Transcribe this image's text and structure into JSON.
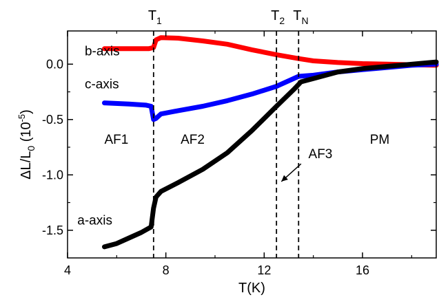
{
  "chart_data": {
    "type": "line",
    "xlabel": "T(K)",
    "ylabel_parts": {
      "prefix": "ΔL/L",
      "sub": "0",
      "mid": " (10",
      "sup": "-5",
      "end": ")"
    },
    "xlim": [
      4,
      19
    ],
    "ylim": [
      -1.75,
      0.3
    ],
    "x_ticks": [
      4,
      8,
      12,
      16
    ],
    "x_tick_labels": [
      "4",
      "8",
      "12",
      "16"
    ],
    "y_ticks": [
      0.0,
      -0.5,
      -1.0,
      -1.5
    ],
    "y_tick_labels": [
      "0.0",
      "-0.5",
      "-1.0",
      "-1.5"
    ],
    "series": [
      {
        "name": "b-axis",
        "color": "#ff0000",
        "points": [
          [
            5.5,
            0.14
          ],
          [
            6.5,
            0.14
          ],
          [
            7.3,
            0.14
          ],
          [
            7.5,
            0.15
          ],
          [
            7.6,
            0.22
          ],
          [
            7.8,
            0.24
          ],
          [
            8.5,
            0.235
          ],
          [
            9.5,
            0.21
          ],
          [
            10.5,
            0.18
          ],
          [
            11.5,
            0.13
          ],
          [
            12.5,
            0.085
          ],
          [
            13.4,
            0.05
          ],
          [
            14,
            0.03
          ],
          [
            15,
            0.015
          ],
          [
            16,
            0.005
          ],
          [
            17,
            0.0
          ],
          [
            18,
            -0.005
          ],
          [
            19,
            -0.01
          ]
        ]
      },
      {
        "name": "c-axis",
        "color": "#0000ff",
        "points": [
          [
            5.5,
            -0.35
          ],
          [
            6.5,
            -0.36
          ],
          [
            7.2,
            -0.37
          ],
          [
            7.4,
            -0.38
          ],
          [
            7.5,
            -0.5
          ],
          [
            7.6,
            -0.49
          ],
          [
            7.8,
            -0.45
          ],
          [
            8.5,
            -0.42
          ],
          [
            9.5,
            -0.38
          ],
          [
            10.5,
            -0.33
          ],
          [
            11.5,
            -0.27
          ],
          [
            12.5,
            -0.2
          ],
          [
            13.4,
            -0.11
          ],
          [
            14,
            -0.1
          ],
          [
            15,
            -0.07
          ],
          [
            16,
            -0.05
          ],
          [
            17,
            -0.03
          ],
          [
            18,
            -0.01
          ],
          [
            19,
            0.0
          ]
        ]
      },
      {
        "name": "a-axis",
        "color": "#000000",
        "points": [
          [
            5.5,
            -1.65
          ],
          [
            6.0,
            -1.62
          ],
          [
            6.5,
            -1.57
          ],
          [
            7.0,
            -1.52
          ],
          [
            7.4,
            -1.47
          ],
          [
            7.5,
            -1.3
          ],
          [
            7.6,
            -1.2
          ],
          [
            7.8,
            -1.15
          ],
          [
            8.5,
            -1.07
          ],
          [
            9.5,
            -0.95
          ],
          [
            10.5,
            -0.8
          ],
          [
            11.5,
            -0.6
          ],
          [
            12.5,
            -0.38
          ],
          [
            13.2,
            -0.23
          ],
          [
            13.5,
            -0.16
          ],
          [
            14,
            -0.13
          ],
          [
            15,
            -0.07
          ],
          [
            16,
            -0.04
          ],
          [
            17,
            -0.02
          ],
          [
            18,
            0.0
          ],
          [
            19,
            0.02
          ]
        ]
      }
    ],
    "vlines": [
      {
        "x": 7.5,
        "label": "T",
        "sub": "1"
      },
      {
        "x": 12.5,
        "label": "T",
        "sub": "2"
      },
      {
        "x": 13.4,
        "label": "T",
        "sub": "N"
      }
    ],
    "annotations": [
      {
        "text": "b-axis",
        "x": 4.7,
        "y": 0.08
      },
      {
        "text": "c-axis",
        "x": 4.7,
        "y": -0.22
      },
      {
        "text": "a-axis",
        "x": 4.4,
        "y": -1.45
      },
      {
        "text": "AF1",
        "x": 5.5,
        "y": -0.72
      },
      {
        "text": "AF2",
        "x": 8.6,
        "y": -0.72
      },
      {
        "text": "AF3",
        "x": 13.8,
        "y": -0.85
      },
      {
        "text": "PM",
        "x": 16.3,
        "y": -0.72
      }
    ],
    "arrow": {
      "from": [
        13.5,
        -0.9
      ],
      "to": [
        12.7,
        -1.06
      ]
    }
  }
}
